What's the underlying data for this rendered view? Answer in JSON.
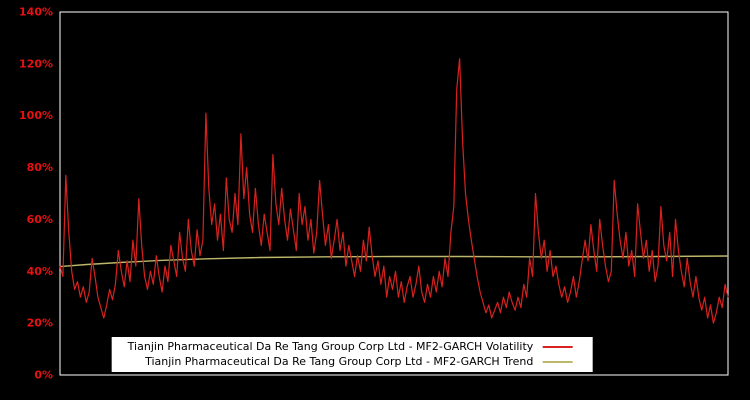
{
  "colors": {
    "background": "#000000",
    "frame": "#ffffff",
    "volatility": "#d8221f",
    "trend": "#bdb76b",
    "tick_label": "#e81010",
    "legend_background": "#ffffff",
    "legend_text": "#000000"
  },
  "legend": {
    "volatility_label": "Tianjin Pharmaceutical Da Re Tang Group Corp Ltd - MF2-GARCH Volatility",
    "trend_label": "Tianjin Pharmaceutical Da Re Tang Group Corp Ltd - MF2-GARCH Trend"
  },
  "chart_data": {
    "type": "line",
    "title": "",
    "xlabel": "",
    "ylabel": "",
    "xticks": [],
    "ylim": [
      0,
      140
    ],
    "yticks": [
      "0%",
      "20%",
      "40%",
      "60%",
      "80%",
      "100%",
      "120%",
      "140%"
    ],
    "ytick_values": [
      0,
      20,
      40,
      60,
      80,
      100,
      120,
      140
    ],
    "grid": false,
    "legend_position": "bottom-center",
    "series": [
      {
        "name": "Tianjin Pharmaceutical Da Re Tang Group Corp Ltd - MF2-GARCH Volatility",
        "color": "#d8221f",
        "unit": "%",
        "values": [
          42,
          38,
          77,
          55,
          40,
          33,
          36,
          30,
          34,
          28,
          32,
          45,
          38,
          30,
          26,
          22,
          27,
          33,
          29,
          35,
          48,
          40,
          34,
          44,
          36,
          52,
          42,
          68,
          50,
          38,
          33,
          40,
          35,
          46,
          38,
          32,
          42,
          36,
          50,
          44,
          38,
          55,
          45,
          40,
          60,
          48,
          42,
          56,
          46,
          52,
          101,
          72,
          58,
          66,
          52,
          62,
          48,
          76,
          60,
          55,
          70,
          58,
          93,
          68,
          80,
          62,
          55,
          72,
          58,
          50,
          62,
          55,
          48,
          85,
          66,
          58,
          72,
          60,
          52,
          64,
          56,
          48,
          70,
          58,
          65,
          52,
          60,
          47,
          55,
          75,
          62,
          50,
          58,
          45,
          52,
          60,
          48,
          55,
          42,
          50,
          44,
          38,
          46,
          40,
          52,
          44,
          57,
          46,
          38,
          44,
          35,
          42,
          30,
          38,
          33,
          40,
          30,
          36,
          28,
          34,
          38,
          30,
          35,
          42,
          32,
          28,
          35,
          30,
          38,
          32,
          40,
          34,
          45,
          38,
          55,
          65,
          110,
          122,
          90,
          70,
          60,
          52,
          45,
          38,
          32,
          28,
          24,
          27,
          22,
          25,
          28,
          24,
          30,
          26,
          32,
          28,
          25,
          30,
          26,
          35,
          30,
          45,
          38,
          70,
          55,
          45,
          52,
          40,
          48,
          38,
          42,
          35,
          30,
          34,
          28,
          32,
          38,
          30,
          36,
          44,
          52,
          44,
          58,
          48,
          40,
          60,
          50,
          42,
          36,
          40,
          75,
          62,
          52,
          45,
          55,
          42,
          48,
          38,
          66,
          55,
          45,
          52,
          40,
          48,
          36,
          42,
          65,
          50,
          44,
          55,
          38,
          60,
          48,
          40,
          34,
          45,
          36,
          30,
          38,
          30,
          25,
          30,
          22,
          27,
          20,
          24,
          30,
          26,
          35,
          30
        ]
      },
      {
        "name": "Tianjin Pharmaceutical Da Re Tang Group Corp Ltd - MF2-GARCH Trend",
        "color": "#bdb76b",
        "unit": "%",
        "x_fraction": [
          0,
          0.04,
          0.09,
          0.15,
          0.22,
          0.3,
          0.4,
          0.5,
          0.6,
          0.7,
          0.8,
          0.9,
          1
        ],
        "values": [
          41.8,
          42.6,
          43.4,
          44.2,
          44.8,
          45.3,
          45.6,
          45.7,
          45.7,
          45.6,
          45.6,
          45.7,
          45.9
        ]
      }
    ]
  }
}
